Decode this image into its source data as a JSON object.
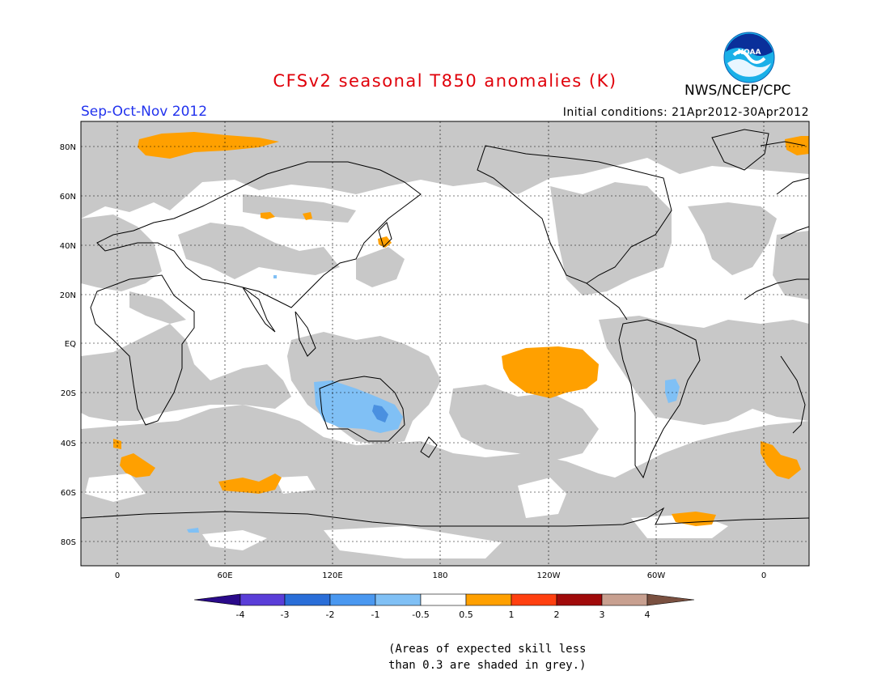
{
  "header": {
    "title": "CFSv2 seasonal T850 anomalies (K)",
    "period": "Sep-Oct-Nov 2012",
    "initial_conditions": "Initial conditions: 21Apr2012-30Apr2012",
    "agency": "NWS/NCEP/CPC",
    "logo_text": "NOAA"
  },
  "map": {
    "lat_labels": [
      "80N",
      "60N",
      "40N",
      "20N",
      "EQ",
      "20S",
      "40S",
      "60S",
      "80S"
    ],
    "lon_labels": [
      "0",
      "60E",
      "120E",
      "180",
      "120W",
      "60W",
      "0"
    ],
    "grey_meaning": "low skill",
    "colors": {
      "grey": "#c8c8c8",
      "warm_1": "#ffa000",
      "cool_1": "#7ab8f5",
      "cool_2": "#4a90e0"
    }
  },
  "colorbar": {
    "labels": [
      "-4",
      "-3",
      "-2",
      "-1",
      "-0.5",
      "0.5",
      "1",
      "2",
      "3",
      "4"
    ],
    "colors": [
      "#2a0a8a",
      "#5a3ed8",
      "#2a6ed8",
      "#4a98f0",
      "#80c0f5",
      "#ffffff",
      "#ffa000",
      "#ff4010",
      "#a00a0a",
      "#c8a090",
      "#7a5040"
    ]
  },
  "note": {
    "line1": "(Areas of expected skill less",
    "line2": "than 0.3 are shaded in grey.)"
  }
}
